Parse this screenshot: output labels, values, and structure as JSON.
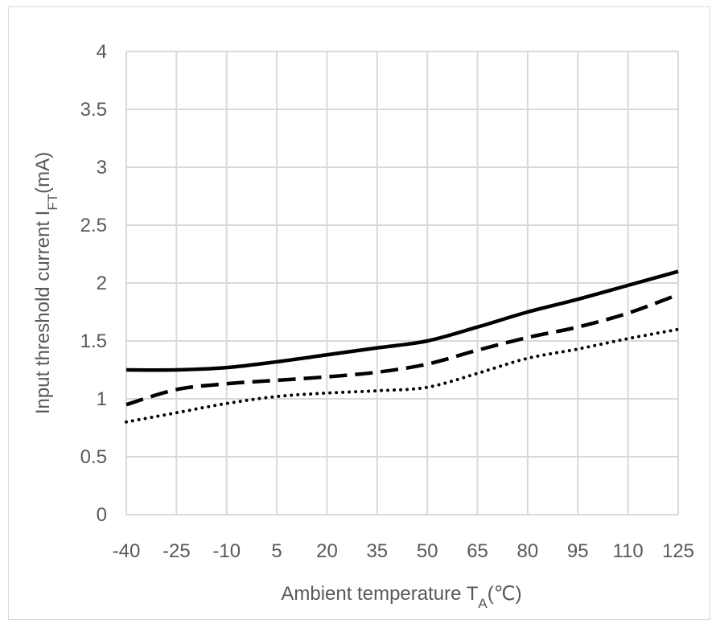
{
  "chart_data": {
    "type": "line",
    "title": "",
    "x": [
      -40,
      -25,
      -10,
      5,
      20,
      35,
      50,
      65,
      80,
      95,
      110,
      125
    ],
    "x_tick_labels": [
      "-40",
      "-25",
      "-10",
      "5",
      "20",
      "35",
      "50",
      "65",
      "80",
      "95",
      "110",
      "125"
    ],
    "y_tick_labels": [
      "0",
      "0.5",
      "1",
      "1.5",
      "2",
      "2.5",
      "3",
      "3.5",
      "4"
    ],
    "xlabel": {
      "main": "Ambient temperature T",
      "sub": "A",
      "tail": "(℃)"
    },
    "ylabel": {
      "main": "Input threshold current I",
      "sub": "FT",
      "tail": "(mA)"
    },
    "ylim": [
      0,
      4
    ],
    "xlim": [
      -40,
      125
    ],
    "grid": true,
    "series": [
      {
        "style": "solid",
        "values": [
          1.25,
          1.25,
          1.27,
          1.32,
          1.38,
          1.44,
          1.5,
          1.62,
          1.75,
          1.86,
          1.98,
          2.1
        ]
      },
      {
        "style": "dashed",
        "values": [
          0.95,
          1.08,
          1.13,
          1.16,
          1.19,
          1.23,
          1.3,
          1.42,
          1.53,
          1.62,
          1.74,
          1.9
        ]
      },
      {
        "style": "dotted",
        "values": [
          0.8,
          0.88,
          0.96,
          1.02,
          1.05,
          1.07,
          1.1,
          1.22,
          1.35,
          1.43,
          1.52,
          1.6
        ]
      }
    ],
    "colors": {
      "line": "#000000",
      "grid": "#d9d9d9",
      "text": "#595959"
    }
  }
}
